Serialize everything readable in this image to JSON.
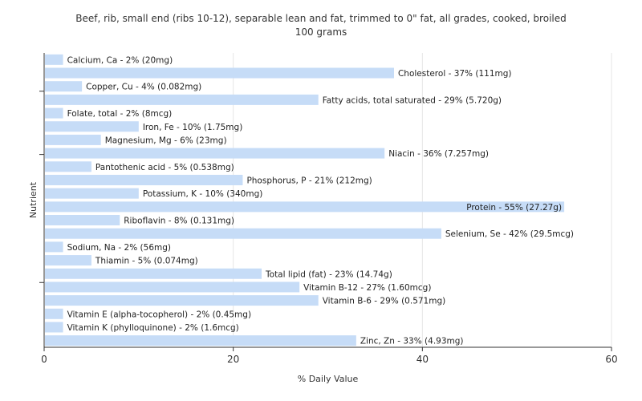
{
  "chart_data": {
    "type": "bar",
    "orientation": "horizontal",
    "title": "Beef, rib, small end (ribs 10-12), separable lean and fat, trimmed to 0\" fat, all grades, cooked, broiled",
    "subtitle": "100 grams",
    "xlabel": "% Daily Value",
    "ylabel": "Nutrient",
    "xlim": [
      0,
      60
    ],
    "xticks": [
      0,
      20,
      40,
      60
    ],
    "grid": true,
    "bar_color": "#c6dcf7",
    "categories": [
      "Calcium, Ca",
      "Cholesterol",
      "Copper, Cu",
      "Fatty acids, total saturated",
      "Folate, total",
      "Iron, Fe",
      "Magnesium, Mg",
      "Niacin",
      "Pantothenic acid",
      "Phosphorus, P",
      "Potassium, K",
      "Protein",
      "Riboflavin",
      "Selenium, Se",
      "Sodium, Na",
      "Thiamin",
      "Total lipid (fat)",
      "Vitamin B-12",
      "Vitamin B-6",
      "Vitamin E (alpha-tocopherol)",
      "Vitamin K (phylloquinone)",
      "Zinc, Zn"
    ],
    "values": [
      2,
      37,
      4,
      29,
      2,
      10,
      6,
      36,
      5,
      21,
      10,
      55,
      8,
      42,
      2,
      5,
      23,
      27,
      29,
      2,
      2,
      33
    ],
    "labels": [
      "Calcium, Ca - 2% (20mg)",
      "Cholesterol - 37% (111mg)",
      "Copper, Cu - 4% (0.082mg)",
      "Fatty acids, total saturated - 29% (5.720g)",
      "Folate, total - 2% (8mcg)",
      "Iron, Fe - 10% (1.75mg)",
      "Magnesium, Mg - 6% (23mg)",
      "Niacin - 36% (7.257mg)",
      "Pantothenic acid - 5% (0.538mg)",
      "Phosphorus, P - 21% (212mg)",
      "Potassium, K - 10% (340mg)",
      "Protein - 55% (27.27g)",
      "Riboflavin - 8% (0.131mg)",
      "Selenium, Se - 42% (29.5mcg)",
      "Sodium, Na - 2% (56mg)",
      "Thiamin - 5% (0.074mg)",
      "Total lipid (fat) - 23% (14.74g)",
      "Vitamin B-12 - 27% (1.60mcg)",
      "Vitamin B-6 - 29% (0.571mg)",
      "Vitamin E (alpha-tocopherol) - 2% (0.45mg)",
      "Vitamin K (phylloquinone) - 2% (1.6mcg)",
      "Zinc, Zn - 33% (4.93mg)"
    ]
  }
}
